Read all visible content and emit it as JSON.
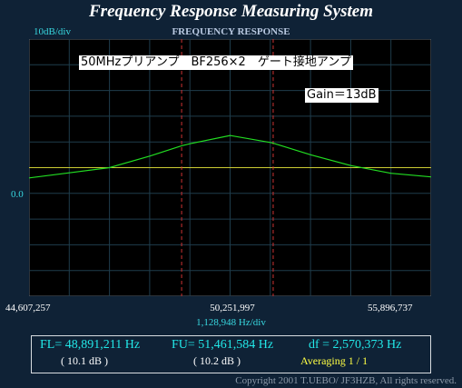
{
  "header": {
    "title": "Frequency Response Measuring System",
    "scale": "10dB/div",
    "panel": "FREQUENCY RESPONSE"
  },
  "plot": {
    "y_label": "0.0",
    "x_start": "44,607,257",
    "x_center": "50,251,997",
    "x_end": "55,896,737",
    "x_div": "1,128,948  Hz/div",
    "annotation_title": "50MHzプリアンプ　BF256×2　ゲート接地アンプ",
    "annotation_gain": "Gain＝13dB"
  },
  "results": {
    "fl": "FL= 48,891,211  Hz",
    "fu": "FU= 51,461,584  Hz",
    "df": "df = 2,570,373  Hz",
    "fl_db": "( 10.1 dB )",
    "fu_db": "( 10.2 dB )",
    "averaging": "Averaging   1 / 1"
  },
  "footer": {
    "copyright": "Copyright 2001 T.UEBO/ JF3HZB, All rights reserved."
  },
  "colors": {
    "background": "#0f2236",
    "plot_bg": "#000000",
    "grid": "#1f3d4c",
    "trace": "#22dd22",
    "reference": "#cccc33",
    "markers": "#cc3333",
    "accent": "#38d8e0"
  },
  "chart_data": {
    "type": "line",
    "x_start_hz": 44607257,
    "x_end_hz": 55896737,
    "x_div_hz": 1128948,
    "y_div_db": 10,
    "ylim": [
      -50,
      50
    ],
    "reference_db": 0,
    "markers_hz": [
      48891211,
      51461584
    ],
    "series": [
      {
        "x": [
          44607257,
          45736205,
          46865153,
          47994101,
          48891211,
          49123049,
          50251997,
          51380945,
          51461584,
          52509893,
          53638841,
          54767789,
          55896737
        ],
        "y": [
          -4,
          -2,
          0,
          4.5,
          8.5,
          9.3,
          12.5,
          9.8,
          9.5,
          5,
          0.8,
          -2.2,
          -3.6
        ]
      }
    ]
  }
}
